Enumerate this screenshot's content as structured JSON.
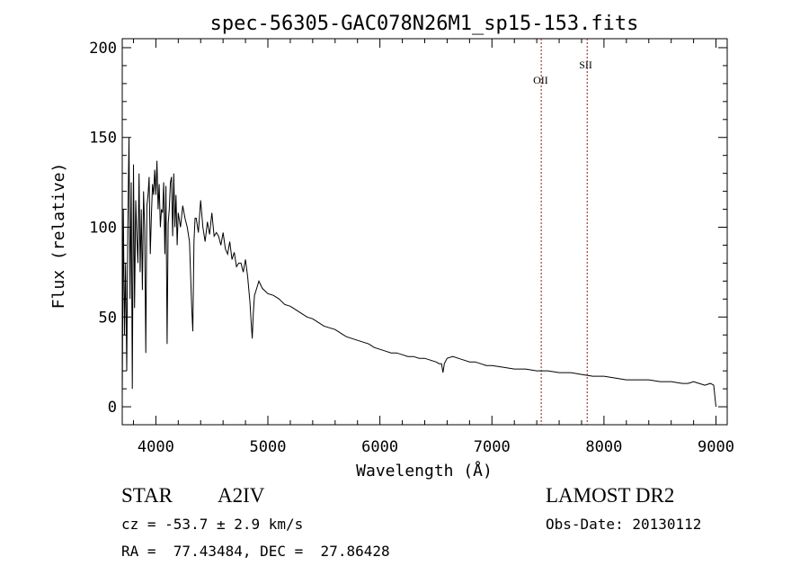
{
  "chart_data": {
    "type": "line",
    "title": "spec-56305-GAC078N26M1_sp15-153.fits",
    "xlabel": "Wavelength (Å)",
    "ylabel": "Flux (relative)",
    "xlim": [
      3700,
      9100
    ],
    "ylim": [
      -10,
      205
    ],
    "x_ticks": [
      4000,
      5000,
      6000,
      7000,
      8000,
      9000
    ],
    "y_ticks": [
      0,
      50,
      100,
      150,
      200
    ],
    "series": [
      {
        "name": "flux",
        "color": "#000000",
        "x": [
          3700,
          3710,
          3720,
          3730,
          3740,
          3750,
          3760,
          3770,
          3780,
          3790,
          3800,
          3810,
          3820,
          3830,
          3840,
          3850,
          3860,
          3870,
          3880,
          3890,
          3900,
          3910,
          3920,
          3930,
          3940,
          3950,
          3960,
          3970,
          3980,
          3990,
          4000,
          4010,
          4020,
          4030,
          4040,
          4050,
          4060,
          4070,
          4080,
          4090,
          4100,
          4110,
          4120,
          4130,
          4140,
          4150,
          4160,
          4170,
          4180,
          4190,
          4200,
          4220,
          4240,
          4260,
          4280,
          4300,
          4320,
          4330,
          4340,
          4350,
          4360,
          4380,
          4400,
          4420,
          4440,
          4460,
          4480,
          4500,
          4520,
          4540,
          4560,
          4580,
          4600,
          4620,
          4640,
          4660,
          4680,
          4700,
          4720,
          4740,
          4760,
          4780,
          4800,
          4820,
          4840,
          4850,
          4860,
          4870,
          4880,
          4900,
          4920,
          4950,
          5000,
          5050,
          5100,
          5150,
          5200,
          5250,
          5300,
          5350,
          5400,
          5450,
          5500,
          5550,
          5600,
          5650,
          5700,
          5750,
          5800,
          5850,
          5900,
          5950,
          6000,
          6050,
          6100,
          6150,
          6200,
          6250,
          6300,
          6350,
          6400,
          6450,
          6500,
          6530,
          6550,
          6563,
          6575,
          6600,
          6650,
          6700,
          6750,
          6800,
          6850,
          6900,
          6950,
          7000,
          7100,
          7200,
          7300,
          7400,
          7500,
          7600,
          7700,
          7800,
          7900,
          8000,
          8100,
          8200,
          8300,
          8400,
          8500,
          8600,
          8700,
          8750,
          8800,
          8850,
          8900,
          8950,
          8980,
          9000
        ],
        "y": [
          5,
          110,
          40,
          80,
          20,
          100,
          150,
          60,
          125,
          10,
          135,
          55,
          115,
          95,
          80,
          130,
          75,
          110,
          65,
          120,
          100,
          30,
          112,
          118,
          128,
          85,
          106,
          124,
          118,
          132,
          118,
          137,
          110,
          124,
          100,
          110,
          108,
          125,
          85,
          123,
          35,
          102,
          110,
          125,
          128,
          95,
          130,
          100,
          118,
          90,
          108,
          100,
          112,
          105,
          100,
          92,
          55,
          42,
          92,
          105,
          105,
          97,
          115,
          100,
          92,
          103,
          96,
          108,
          95,
          97,
          95,
          90,
          97,
          88,
          85,
          92,
          82,
          86,
          78,
          80,
          80,
          75,
          82,
          72,
          58,
          48,
          38,
          52,
          62,
          66,
          70,
          66,
          63,
          62,
          60,
          57,
          56,
          54,
          52,
          50,
          49,
          47,
          45,
          44,
          43,
          41,
          39,
          38,
          37,
          36,
          35,
          33,
          32,
          31,
          30,
          30,
          29,
          28,
          28,
          27,
          27,
          26,
          25,
          24,
          24,
          19,
          24,
          27,
          28,
          27,
          26,
          25,
          25,
          24,
          23,
          23,
          22,
          21,
          21,
          20,
          20,
          19,
          19,
          18,
          17,
          17,
          16,
          15,
          15,
          15,
          14,
          14,
          13,
          13,
          14,
          13,
          12,
          13,
          12,
          0
        ]
      }
    ],
    "line_annotations": [
      {
        "label": "OII",
        "x": 7440,
        "color": "#8b1a1a"
      },
      {
        "label": "SII",
        "x": 7850,
        "color": "#8b1a1a"
      }
    ]
  },
  "info": {
    "object_type": "STAR",
    "subclass": "A2IV",
    "cz": "cz = -53.7 ± 2.9 km/s",
    "coords": "RA =  77.43484, DEC =  27.86428",
    "survey": "LAMOST DR2",
    "obs_date": "Obs-Date: 20130112"
  }
}
